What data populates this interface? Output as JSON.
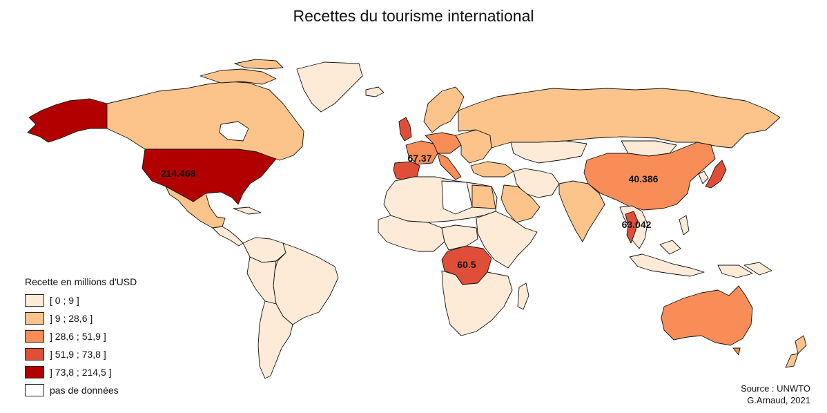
{
  "title": "Recettes du tourisme international",
  "legend": {
    "title": "Recette en millions d'USD",
    "classes": [
      {
        "label": "[ 0 ; 9 ]",
        "color": "#fdebd8"
      },
      {
        "label": "] 9 ; 28,6 ]",
        "color": "#fcc48b"
      },
      {
        "label": "] 28,6 ; 51,9 ]",
        "color": "#f98d58"
      },
      {
        "label": "] 51,9 ; 73,8 ]",
        "color": "#e04e39"
      },
      {
        "label": "] 73,8 ; 214,5 ]",
        "color": "#b20000"
      },
      {
        "label": "pas de données",
        "color": "#ffffff"
      }
    ]
  },
  "labels": {
    "usa": "214.468",
    "spain": "67.37",
    "china": "40.386",
    "thailand": "63.042",
    "drc": "60.5"
  },
  "source": {
    "line1": "Source : UNWTO",
    "line2": "G.Arnaud, 2021"
  },
  "colors": {
    "border": "#111111"
  }
}
